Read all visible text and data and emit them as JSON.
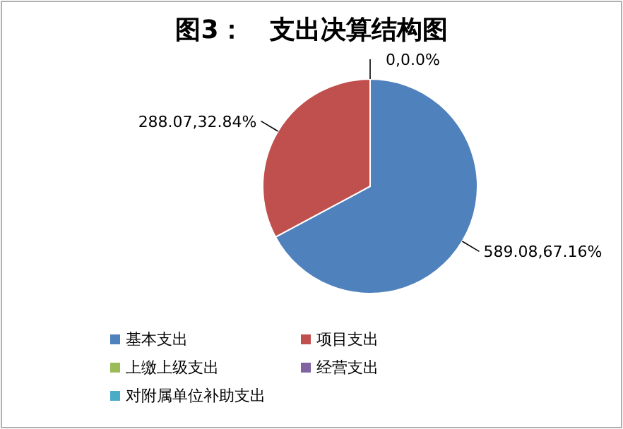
{
  "chart_data": {
    "type": "pie",
    "title": "图3：　支出决算结构图",
    "categories": [
      "基本支出",
      "项目支出",
      "上缴上级支出",
      "经营支出",
      "对附属单位补助支出"
    ],
    "values": [
      67.16,
      32.84,
      0,
      0,
      0
    ],
    "colors": [
      "#4f81bd",
      "#c0504d",
      "#9bbb59",
      "#8064a2",
      "#4bacc6"
    ],
    "value_labels": [
      "589.08,67.16%",
      "288.07,32.84%",
      "0,0.0%",
      null,
      null
    ],
    "legend": "bottom"
  }
}
